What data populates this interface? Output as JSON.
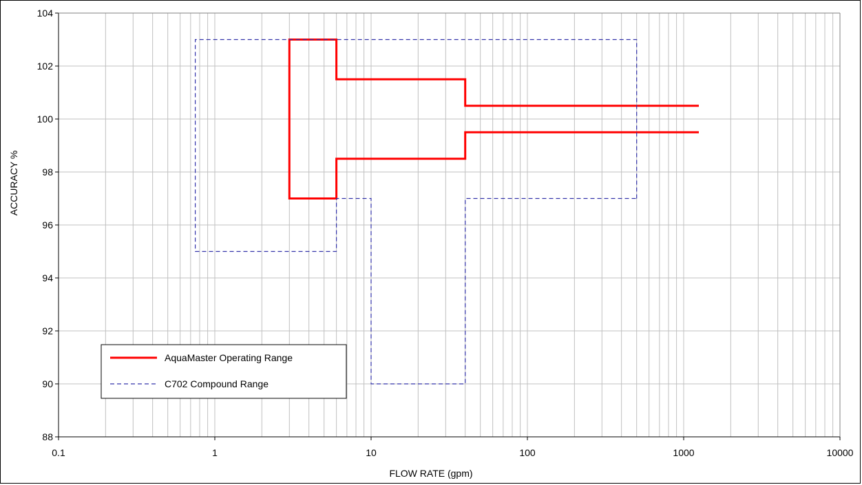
{
  "chart_data": {
    "type": "line",
    "title": "",
    "xlabel": "FLOW RATE (gpm)",
    "ylabel": "ACCURACY %",
    "x_scale": "log",
    "xlim": [
      0.1,
      10000
    ],
    "ylim": [
      88,
      104
    ],
    "x_ticks": [
      0.1,
      1,
      10,
      100,
      1000,
      10000
    ],
    "x_tick_labels": [
      "0.1",
      "1",
      "10",
      "100",
      "1000",
      "10000"
    ],
    "y_ticks": [
      88,
      90,
      92,
      94,
      96,
      98,
      100,
      102,
      104
    ],
    "y_tick_labels": [
      "88",
      "90",
      "92",
      "94",
      "96",
      "98",
      "100",
      "102",
      "104"
    ],
    "grid": true,
    "legend_position": "bottom-left",
    "series": [
      {
        "name": "AquaMaster Operating Range",
        "color": "#ff0000",
        "style": "solid",
        "segments": [
          [
            [
              1250,
              100.5
            ],
            [
              40,
              100.5
            ],
            [
              40,
              101.5
            ],
            [
              6,
              101.5
            ],
            [
              6,
              103
            ],
            [
              3,
              103
            ],
            [
              3,
              97
            ],
            [
              6,
              97
            ],
            [
              6,
              98.5
            ],
            [
              40,
              98.5
            ],
            [
              40,
              99.5
            ],
            [
              1250,
              99.5
            ]
          ]
        ]
      },
      {
        "name": "C702 Compound Range",
        "color": "#3333aa",
        "style": "dashed",
        "segments": [
          [
            [
              500,
              97
            ],
            [
              500,
              103
            ],
            [
              0.75,
              103
            ],
            [
              0.75,
              95
            ],
            [
              6,
              95
            ],
            [
              6,
              97
            ],
            [
              10,
              97
            ],
            [
              10,
              90
            ],
            [
              40,
              90
            ],
            [
              40,
              97
            ],
            [
              500,
              97
            ]
          ]
        ]
      }
    ]
  }
}
